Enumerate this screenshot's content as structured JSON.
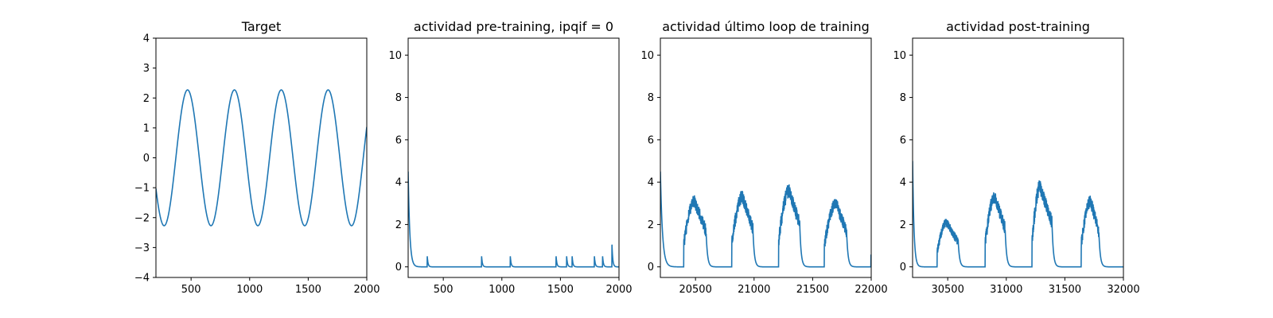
{
  "figure": {
    "line_color": "#1f77b4",
    "axes_color": "#000000",
    "background": "#ffffff"
  },
  "chart_data": [
    {
      "type": "line",
      "title": "Target",
      "xlabel": "",
      "ylabel": "",
      "xlim": [
        200,
        2000
      ],
      "ylim": [
        -4,
        4
      ],
      "xticks": [
        500,
        1000,
        1500,
        2000
      ],
      "yticks": [
        -4,
        -3,
        -2,
        -1,
        0,
        1,
        2,
        3,
        4
      ],
      "ytick_labels": [
        "−4",
        "−3",
        "−2",
        "−1",
        "0",
        "1",
        "2",
        "3",
        "4"
      ],
      "series": [
        {
          "kind": "sine",
          "amplitude": 2.27,
          "period": 400,
          "peak_x": [
            470,
            870,
            1270,
            1670
          ],
          "trough_x": [
            270,
            670,
            1070,
            1470,
            1870
          ],
          "x_start": 200,
          "y_start": -0.85,
          "y_end": 0.9
        }
      ]
    },
    {
      "type": "line",
      "title": "actividad pre-training, ipqif = 0",
      "xlabel": "",
      "ylabel": "",
      "xlim": [
        200,
        2000
      ],
      "ylim": [
        -0.5,
        10.8
      ],
      "xticks": [
        500,
        1000,
        1500,
        2000
      ],
      "yticks": [
        0,
        2,
        4,
        6,
        8,
        10
      ],
      "series": [
        {
          "kind": "decay_spikes",
          "start_value": 4.5,
          "decay": 14,
          "spikes": [
            {
              "x": 363,
              "y": 0.5
            },
            {
              "x": 827,
              "y": 0.5
            },
            {
              "x": 1072,
              "y": 0.5
            },
            {
              "x": 1463,
              "y": 0.5
            },
            {
              "x": 1553,
              "y": 0.5
            },
            {
              "x": 1600,
              "y": 0.5
            },
            {
              "x": 1790,
              "y": 0.5
            },
            {
              "x": 1860,
              "y": 0.5
            },
            {
              "x": 1940,
              "y": 1.05
            }
          ]
        }
      ]
    },
    {
      "type": "line",
      "title": "actividad último loop de training",
      "xlabel": "",
      "ylabel": "",
      "xlim": [
        20200,
        22000
      ],
      "ylim": [
        -0.5,
        10.8
      ],
      "xticks": [
        20500,
        21000,
        21500,
        22000
      ],
      "yticks": [
        0,
        2,
        4,
        6,
        8,
        10
      ],
      "series": [
        {
          "kind": "bumps",
          "start_value": 4.5,
          "decay": 18,
          "bumps": [
            {
              "onset": 20400,
              "peak_x": 20490,
              "peak": 3.1,
              "end": 20590
            },
            {
              "onset": 20810,
              "peak_x": 20900,
              "peak": 3.3,
              "end": 20990
            },
            {
              "onset": 21210,
              "peak_x": 21300,
              "peak": 3.6,
              "end": 21390
            },
            {
              "onset": 21600,
              "peak_x": 21700,
              "peak": 3.0,
              "end": 21790
            }
          ],
          "end_value": 0.55
        }
      ]
    },
    {
      "type": "line",
      "title": "actividad post-training",
      "xlabel": "",
      "ylabel": "",
      "xlim": [
        30200,
        32000
      ],
      "ylim": [
        -0.5,
        10.8
      ],
      "xticks": [
        30500,
        31000,
        31500,
        32000
      ],
      "yticks": [
        0,
        2,
        4,
        6,
        8,
        10
      ],
      "series": [
        {
          "kind": "bumps",
          "start_value": 5.0,
          "decay": 12,
          "bumps": [
            {
              "onset": 30410,
              "peak_x": 30490,
              "peak": 2.1,
              "end": 30590
            },
            {
              "onset": 30820,
              "peak_x": 30900,
              "peak": 3.3,
              "end": 30990
            },
            {
              "onset": 31220,
              "peak_x": 31290,
              "peak": 3.8,
              "end": 31390
            },
            {
              "onset": 31640,
              "peak_x": 31720,
              "peak": 3.1,
              "end": 31790
            }
          ],
          "end_value": 0
        }
      ]
    }
  ]
}
